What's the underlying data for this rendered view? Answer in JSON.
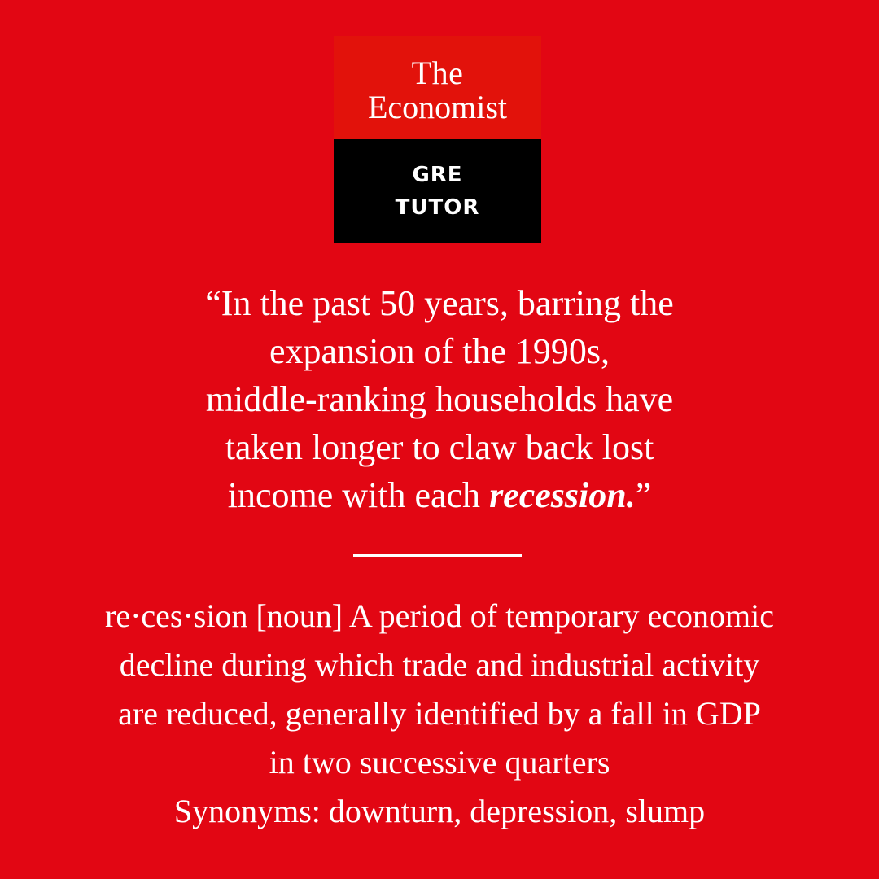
{
  "logo": {
    "line1": "The",
    "line2": "Economist",
    "sub_line1": "GRE",
    "sub_line2": "TUTOR"
  },
  "quote": {
    "line1": "“In the past 50 years, barring the",
    "line2": "expansion of the 1990s,",
    "line3": "middle-ranking households have",
    "line4": "taken longer to claw back lost",
    "line5_prefix": "income with each ",
    "highlight_word": "recession.",
    "line5_suffix": "”"
  },
  "definition": {
    "line1": "re·ces·sion [noun] A period of temporary economic",
    "line2": "decline during which trade and industrial activity",
    "line3": "are reduced, generally identified by a fall in GDP",
    "line4": "in two successive quarters",
    "synonyms": "Synonyms: downturn, depression, slump"
  },
  "colors": {
    "background": "#e20613",
    "logo_top": "#e2120b",
    "logo_bottom": "#000000",
    "text": "#ffffff"
  }
}
